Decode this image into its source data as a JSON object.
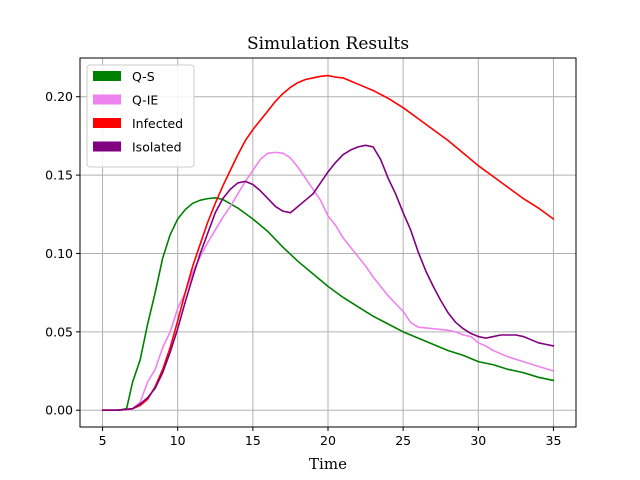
{
  "chart_data": {
    "type": "line",
    "title": "Simulation Results",
    "xlabel": "Time",
    "ylabel": "",
    "xlim": [
      3.5,
      36.5
    ],
    "ylim": [
      -0.0107,
      0.2247
    ],
    "xticks": [
      5,
      10,
      15,
      20,
      25,
      30,
      35
    ],
    "xtick_labels": [
      "5",
      "10",
      "15",
      "20",
      "25",
      "30",
      "35"
    ],
    "yticks": [
      0.0,
      0.05,
      0.1,
      0.15,
      0.2
    ],
    "ytick_labels": [
      "0.00",
      "0.05",
      "0.10",
      "0.15",
      "0.20"
    ],
    "grid": true,
    "legend_position": "upper-left",
    "series": [
      {
        "name": "Q-S",
        "color": "#008000",
        "x": [
          5,
          6,
          6.6,
          7,
          7.5,
          8,
          8.5,
          9,
          9.5,
          10,
          10.5,
          11,
          11.5,
          12,
          12.5,
          13,
          14,
          15,
          16,
          17,
          18,
          19,
          20,
          21,
          22,
          23,
          24,
          25,
          26,
          27,
          28,
          29,
          30,
          31,
          32,
          33,
          34,
          35
        ],
        "y": [
          0.0,
          0.0,
          0.001,
          0.018,
          0.032,
          0.055,
          0.075,
          0.097,
          0.112,
          0.122,
          0.128,
          0.132,
          0.134,
          0.135,
          0.1355,
          0.1345,
          0.129,
          0.122,
          0.114,
          0.104,
          0.095,
          0.087,
          0.079,
          0.072,
          0.066,
          0.06,
          0.055,
          0.05,
          0.046,
          0.042,
          0.038,
          0.035,
          0.031,
          0.029,
          0.026,
          0.024,
          0.021,
          0.019
        ]
      },
      {
        "name": "Q-IE",
        "color": "#ee82ee",
        "x": [
          5,
          6,
          7,
          7.5,
          8,
          8.5,
          9,
          9.5,
          10,
          10.5,
          11,
          11.5,
          12,
          12.5,
          13,
          13.5,
          14,
          14.5,
          15,
          15.5,
          16,
          16.5,
          17,
          17.5,
          18,
          18.5,
          19,
          19.5,
          20,
          20.5,
          21,
          21.5,
          22,
          22.5,
          23,
          23.5,
          24,
          24.5,
          25,
          25.5,
          26,
          27,
          28,
          28.5,
          29,
          29.5,
          30,
          30.5,
          31,
          32,
          33,
          34,
          35
        ],
        "y": [
          0.0,
          0.0,
          0.001,
          0.005,
          0.018,
          0.026,
          0.04,
          0.05,
          0.065,
          0.075,
          0.088,
          0.098,
          0.107,
          0.115,
          0.123,
          0.13,
          0.138,
          0.146,
          0.153,
          0.16,
          0.164,
          0.1645,
          0.164,
          0.161,
          0.155,
          0.148,
          0.141,
          0.134,
          0.124,
          0.118,
          0.11,
          0.104,
          0.098,
          0.092,
          0.085,
          0.079,
          0.073,
          0.068,
          0.063,
          0.056,
          0.053,
          0.052,
          0.051,
          0.05,
          0.048,
          0.047,
          0.043,
          0.041,
          0.038,
          0.034,
          0.031,
          0.028,
          0.025
        ]
      },
      {
        "name": "Infected",
        "color": "#ff0000",
        "x": [
          5,
          6,
          7,
          7.5,
          8,
          8.5,
          9,
          9.5,
          10,
          10.5,
          11,
          11.5,
          12,
          12.5,
          13,
          13.5,
          14,
          14.5,
          15,
          15.5,
          16,
          16.5,
          17,
          17.5,
          18,
          18.5,
          19,
          19.5,
          20,
          20.5,
          21,
          21.5,
          22,
          22.5,
          23,
          24,
          25,
          26,
          27,
          28,
          29,
          30,
          31,
          32,
          33,
          34,
          35
        ],
        "y": [
          0.0,
          0.0,
          0.001,
          0.003,
          0.007,
          0.015,
          0.026,
          0.04,
          0.057,
          0.075,
          0.092,
          0.106,
          0.12,
          0.132,
          0.143,
          0.153,
          0.163,
          0.172,
          0.179,
          0.185,
          0.191,
          0.197,
          0.202,
          0.206,
          0.209,
          0.211,
          0.212,
          0.213,
          0.2135,
          0.2125,
          0.212,
          0.21,
          0.208,
          0.206,
          0.204,
          0.199,
          0.193,
          0.186,
          0.179,
          0.172,
          0.164,
          0.156,
          0.149,
          0.142,
          0.135,
          0.129,
          0.122
        ]
      },
      {
        "name": "Isolated",
        "color": "#800080",
        "x": [
          5,
          6,
          7,
          7.5,
          8,
          8.5,
          9,
          9.5,
          10,
          10.5,
          11,
          11.5,
          12,
          12.5,
          13,
          13.5,
          14,
          14.5,
          15,
          15.5,
          16,
          16.5,
          17,
          17.5,
          18,
          18.5,
          19,
          19.5,
          20,
          20.5,
          21,
          21.5,
          22,
          22.5,
          23,
          23.5,
          24,
          24.5,
          25,
          25.5,
          26,
          26.5,
          27,
          27.5,
          28,
          28.5,
          29,
          29.5,
          30,
          30.5,
          31,
          31.5,
          32,
          32.5,
          33,
          33.5,
          34,
          34.5,
          35
        ],
        "y": [
          0.0,
          0.0,
          0.001,
          0.004,
          0.008,
          0.014,
          0.024,
          0.037,
          0.052,
          0.069,
          0.085,
          0.1,
          0.113,
          0.126,
          0.135,
          0.141,
          0.145,
          0.146,
          0.144,
          0.14,
          0.135,
          0.13,
          0.127,
          0.126,
          0.13,
          0.134,
          0.138,
          0.145,
          0.152,
          0.158,
          0.163,
          0.166,
          0.168,
          0.169,
          0.168,
          0.16,
          0.148,
          0.138,
          0.126,
          0.115,
          0.101,
          0.089,
          0.079,
          0.07,
          0.062,
          0.056,
          0.052,
          0.049,
          0.047,
          0.046,
          0.047,
          0.048,
          0.048,
          0.048,
          0.047,
          0.045,
          0.043,
          0.042,
          0.041
        ]
      }
    ]
  }
}
